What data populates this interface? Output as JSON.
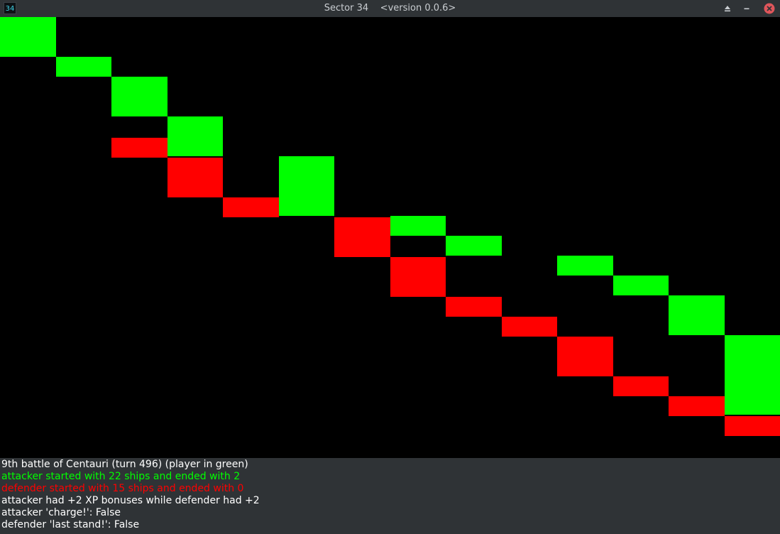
{
  "window": {
    "app_icon_text": "34",
    "title": "Sector 34    <version 0.0.6>",
    "icons": {
      "maximize": "eject-icon",
      "minimize": "minus-icon",
      "close": "close-icon"
    }
  },
  "battle_chart": {
    "player_color": "#00ff00",
    "enemy_color": "#ff0000",
    "step_count": 14,
    "player_ships": [
      22,
      20,
      19,
      17,
      15,
      15,
      12,
      12,
      11,
      10,
      10,
      9,
      8,
      6,
      2
    ],
    "enemy_ships": [
      15,
      15,
      15,
      14,
      12,
      11,
      11,
      9,
      7,
      6,
      5,
      3,
      2,
      1,
      0
    ]
  },
  "log": {
    "line1": "9th battle of Centauri (turn 496) (player in green)",
    "line2": "attacker started with 22 ships and ended with 2",
    "line3": "defender started with 15 ships and ended with 0",
    "line4": "attacker had +2 XP bonuses while defender had +2",
    "line5": "attacker 'charge!': False",
    "line6": "defender 'last stand!': False"
  }
}
